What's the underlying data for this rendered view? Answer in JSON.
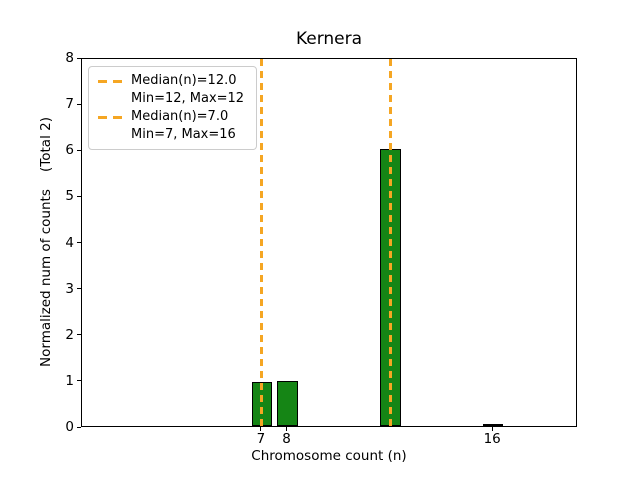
{
  "chart_data": {
    "type": "bar",
    "title": "Kernera",
    "xlabel": "Chromosome count (n)",
    "ylabel": "Normalized num of counts    (Total 2)",
    "xlim": [
      0,
      19.3
    ],
    "ylim": [
      0,
      8
    ],
    "xticks": [
      7,
      8,
      16
    ],
    "yticks": [
      0,
      1,
      2,
      3,
      4,
      5,
      6,
      7,
      8
    ],
    "bar_width": 0.8,
    "bars": [
      {
        "x": 7,
        "height": 0.95
      },
      {
        "x": 8,
        "height": 0.98
      },
      {
        "x": 12,
        "height": 6.0
      },
      {
        "x": 16,
        "height": 0.05
      }
    ],
    "vlines": [
      {
        "x": 12,
        "style": "dashed"
      },
      {
        "x": 7,
        "style": "dashed"
      }
    ],
    "legend": {
      "position": "upper-left",
      "entries": [
        {
          "marker": "dashed-line",
          "line1": "Median(n)=12.0",
          "line2": "Min=12, Max=12"
        },
        {
          "marker": "dashed-line",
          "line1": "Median(n)=7.0",
          "line2": "Min=7, Max=16"
        }
      ]
    },
    "grid": false,
    "colors": {
      "bar_fill": "#158515",
      "bar_edge": "#000000",
      "median_line": "#F5A623",
      "axes": "#000000",
      "background": "#ffffff",
      "legend_border": "#cccccc"
    }
  }
}
